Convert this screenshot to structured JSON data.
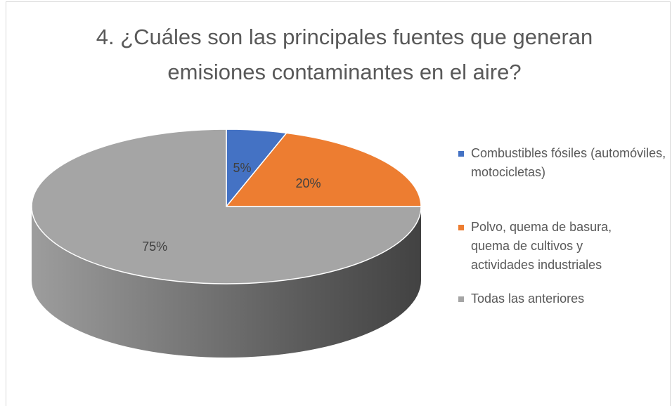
{
  "chart_data": {
    "type": "pie",
    "title": "4. ¿Cuáles son las principales fuentes que generan emisiones contaminantes en el aire?",
    "categories": [
      "Combustibles fósiles (automóviles, motocicletas)",
      "Polvo, quema de basura, quema de cultivos y actividades industriales",
      "Todas las anteriores"
    ],
    "values": [
      5,
      20,
      75
    ],
    "value_labels": [
      "5%",
      "20%",
      "75%"
    ],
    "colors": [
      "#4472c4",
      "#ed7d31",
      "#a5a5a5"
    ],
    "legend": "right"
  }
}
